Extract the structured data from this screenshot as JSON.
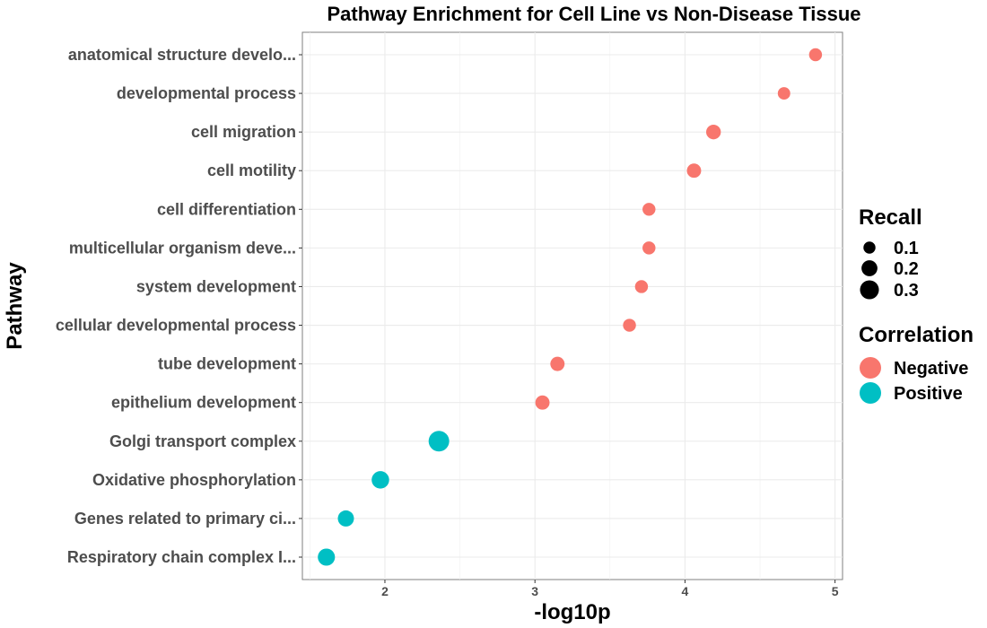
{
  "chart_data": {
    "type": "scatter",
    "title": "Pathway Enrichment for Cell Line vs Non-Disease Tissue",
    "xlabel": "-log10p",
    "ylabel": "Pathway",
    "xlim": [
      1.45,
      5.05
    ],
    "xticks": [
      2,
      3,
      4,
      5
    ],
    "grid": true,
    "legend_placement": "right",
    "colors": {
      "Negative": "#F8766D",
      "Positive": "#00BFC4"
    },
    "categories": [
      "anatomical structure develo...",
      "developmental process",
      "cell migration",
      "cell motility",
      "cell differentiation",
      "multicellular organism deve...",
      "system development",
      "cellular developmental process",
      "tube development",
      "epithelium development",
      "Golgi transport complex",
      "Oxidative phosphorylation",
      "Genes related to primary ci...",
      "Respiratory chain complex I..."
    ],
    "points": [
      {
        "pathway": "anatomical structure develo...",
        "x": 4.87,
        "recall": 0.1,
        "correlation": "Negative"
      },
      {
        "pathway": "developmental process",
        "x": 4.66,
        "recall": 0.09,
        "correlation": "Negative"
      },
      {
        "pathway": "cell migration",
        "x": 4.19,
        "recall": 0.14,
        "correlation": "Negative"
      },
      {
        "pathway": "cell motility",
        "x": 4.06,
        "recall": 0.13,
        "correlation": "Negative"
      },
      {
        "pathway": "cell differentiation",
        "x": 3.76,
        "recall": 0.1,
        "correlation": "Negative"
      },
      {
        "pathway": "multicellular organism deve...",
        "x": 3.76,
        "recall": 0.1,
        "correlation": "Negative"
      },
      {
        "pathway": "system development",
        "x": 3.71,
        "recall": 0.1,
        "correlation": "Negative"
      },
      {
        "pathway": "cellular developmental process",
        "x": 3.63,
        "recall": 0.1,
        "correlation": "Negative"
      },
      {
        "pathway": "tube development",
        "x": 3.15,
        "recall": 0.13,
        "correlation": "Negative"
      },
      {
        "pathway": "epithelium development",
        "x": 3.05,
        "recall": 0.13,
        "correlation": "Negative"
      },
      {
        "pathway": "Golgi transport complex",
        "x": 2.36,
        "recall": 0.33,
        "correlation": "Positive"
      },
      {
        "pathway": "Oxidative phosphorylation",
        "x": 1.97,
        "recall": 0.22,
        "correlation": "Positive"
      },
      {
        "pathway": "Genes related to primary ci...",
        "x": 1.74,
        "recall": 0.18,
        "correlation": "Positive"
      },
      {
        "pathway": "Respiratory chain complex I...",
        "x": 1.61,
        "recall": 0.21,
        "correlation": "Positive"
      }
    ],
    "legend": {
      "size_title": "Recall",
      "size_entries": [
        {
          "label": "0.1",
          "recall": 0.1
        },
        {
          "label": "0.2",
          "recall": 0.2
        },
        {
          "label": "0.3",
          "recall": 0.3
        }
      ],
      "color_title": "Correlation",
      "color_entries": [
        "Negative",
        "Positive"
      ]
    }
  }
}
